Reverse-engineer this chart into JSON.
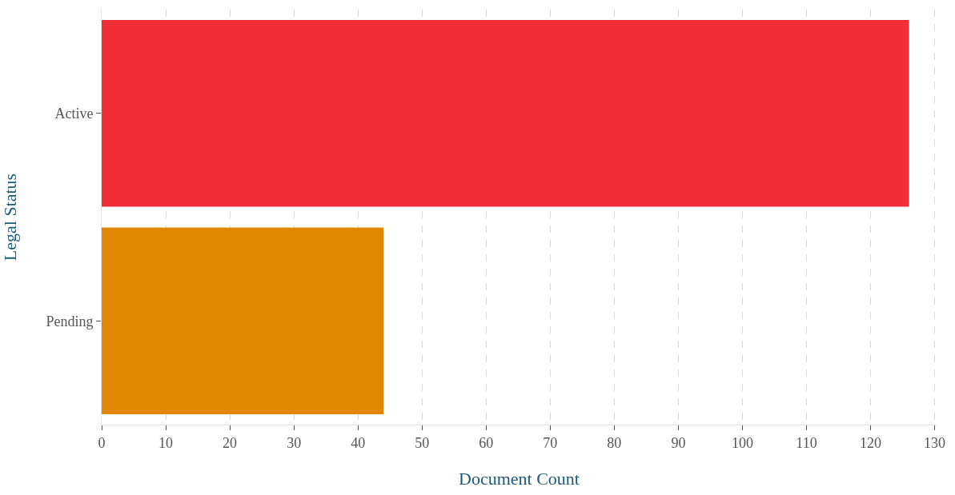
{
  "chart_data": {
    "type": "bar",
    "orientation": "horizontal",
    "categories": [
      "Active",
      "Pending"
    ],
    "values": [
      126,
      44
    ],
    "colors": [
      "#f22e36",
      "#e38703"
    ],
    "xlabel": "Document Count",
    "ylabel": "Legal Status",
    "xlim": [
      0,
      130.3
    ],
    "xticks": [
      0,
      10,
      20,
      30,
      40,
      50,
      60,
      70,
      80,
      90,
      100,
      110,
      120,
      130
    ],
    "grid": "x"
  }
}
